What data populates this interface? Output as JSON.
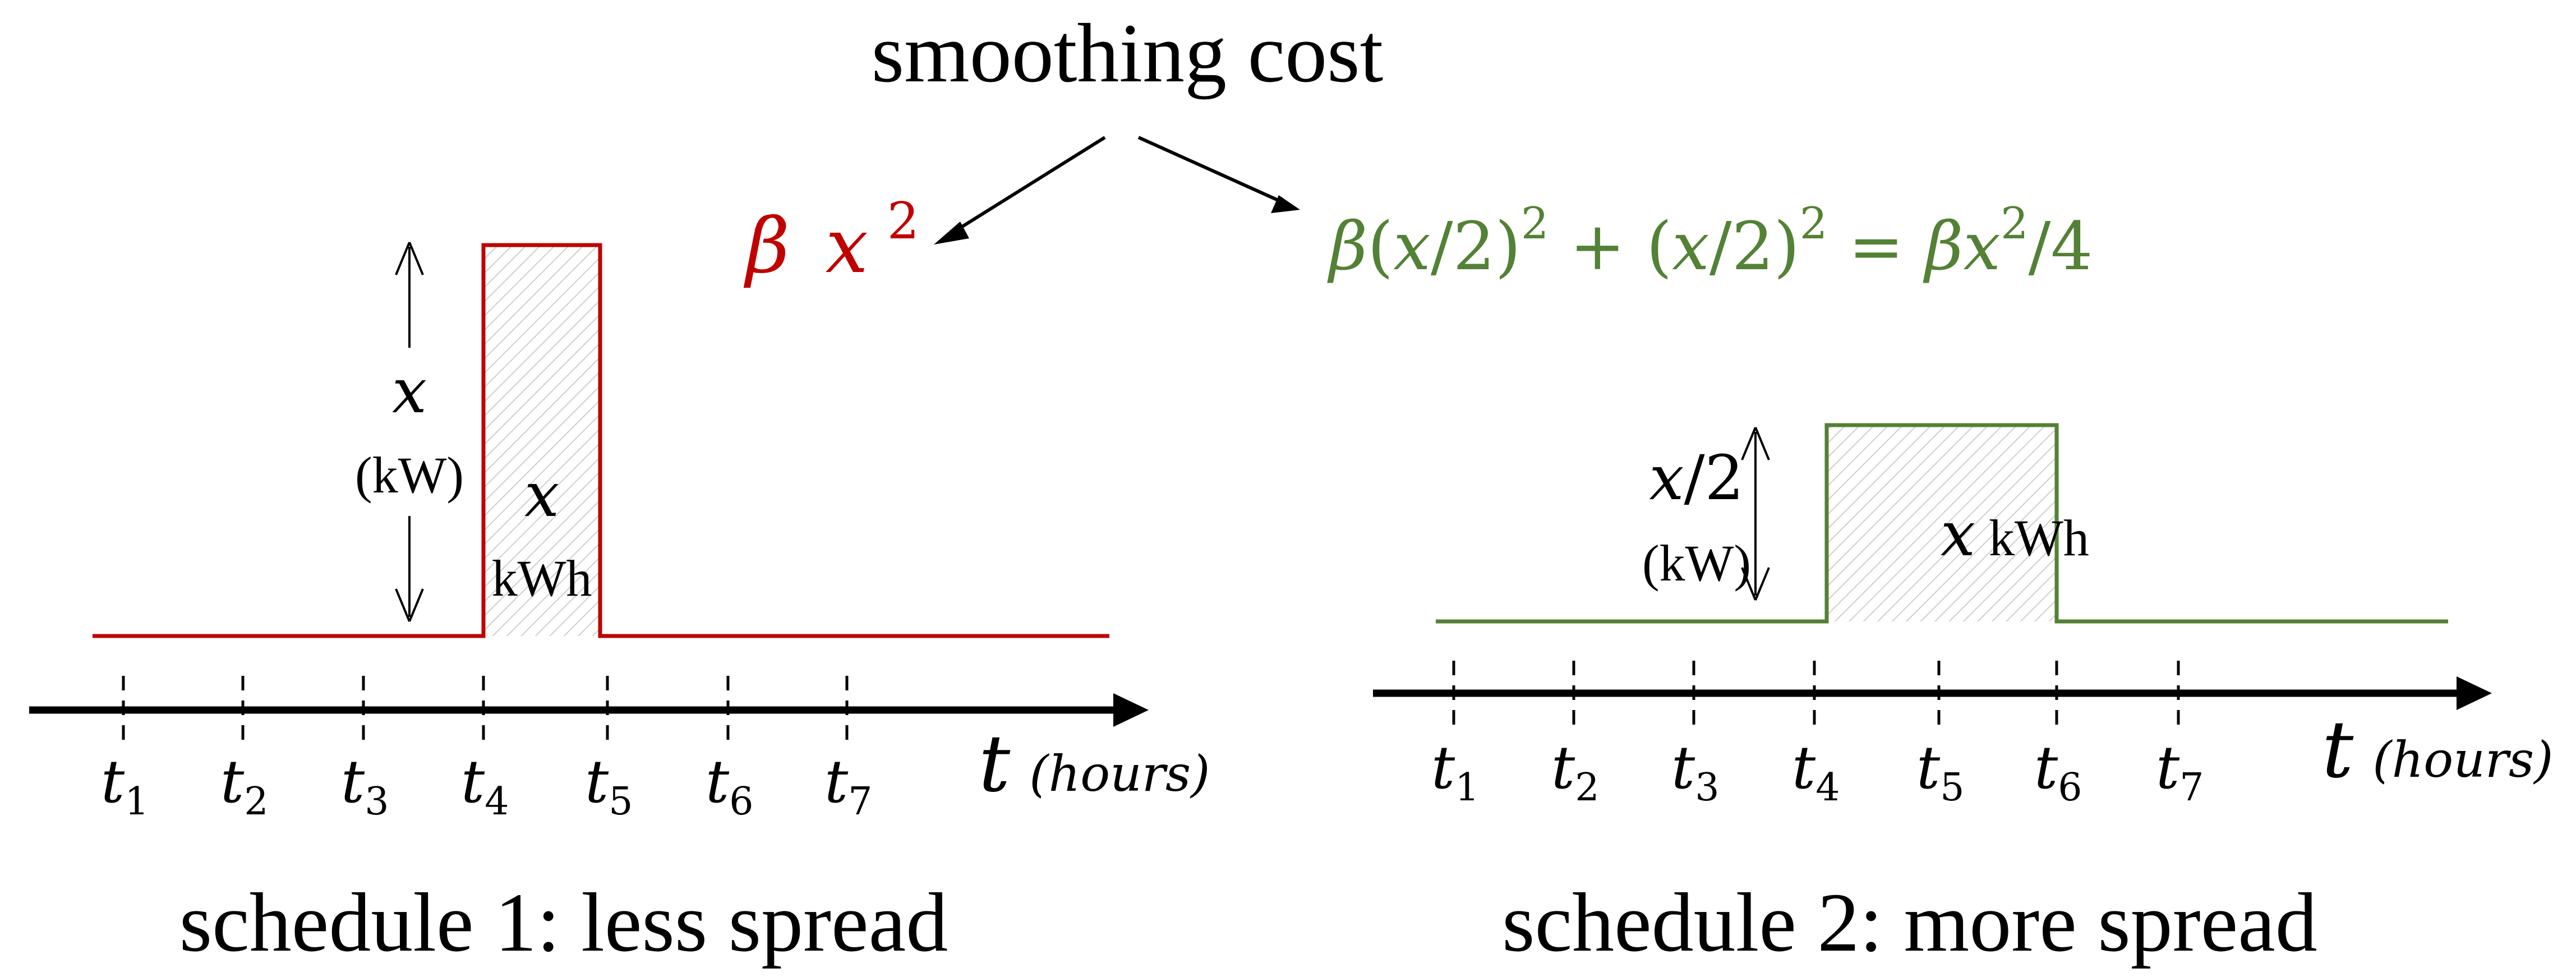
{
  "title": "smoothing cost",
  "colors": {
    "schedule1": "#c00000",
    "schedule2": "#538135",
    "axis": "#000000",
    "hatch": "#c9c9c9"
  },
  "cost_left": {
    "beta": "β",
    "var": "x",
    "exp": "2"
  },
  "cost_right": {
    "beta1": "β",
    "open1": "(",
    "var1": "x",
    "div1": "/2)",
    "exp1": "2",
    "plus": " + (",
    "var2": "x",
    "div2": "/2)",
    "exp2": "2",
    "eq": " = ",
    "beta3": "β",
    "var3": "x",
    "exp3": "2",
    "tail": "/4"
  },
  "schedule1": {
    "caption": "schedule 1: less spread",
    "height_var": "x",
    "height_unit": "(kW)",
    "energy_var": "x",
    "energy_unit": "kWh",
    "ticks": [
      {
        "base": "t",
        "sub": "1"
      },
      {
        "base": "t",
        "sub": "2"
      },
      {
        "base": "t",
        "sub": "3"
      },
      {
        "base": "t",
        "sub": "4"
      },
      {
        "base": "t",
        "sub": "5"
      },
      {
        "base": "t",
        "sub": "6"
      },
      {
        "base": "t",
        "sub": "7"
      }
    ],
    "axis_var": "t",
    "axis_unit": "(hours)"
  },
  "schedule2": {
    "caption": "schedule 2: more spread",
    "height_var": "x",
    "height_suffix": "/2",
    "height_unit": "(kW)",
    "energy_var": "x",
    "energy_unit": "kWh",
    "ticks": [
      {
        "base": "t",
        "sub": "1"
      },
      {
        "base": "t",
        "sub": "2"
      },
      {
        "base": "t",
        "sub": "3"
      },
      {
        "base": "t",
        "sub": "4"
      },
      {
        "base": "t",
        "sub": "5"
      },
      {
        "base": "t",
        "sub": "6"
      },
      {
        "base": "t",
        "sub": "7"
      }
    ],
    "axis_var": "t",
    "axis_unit": "(hours)"
  }
}
